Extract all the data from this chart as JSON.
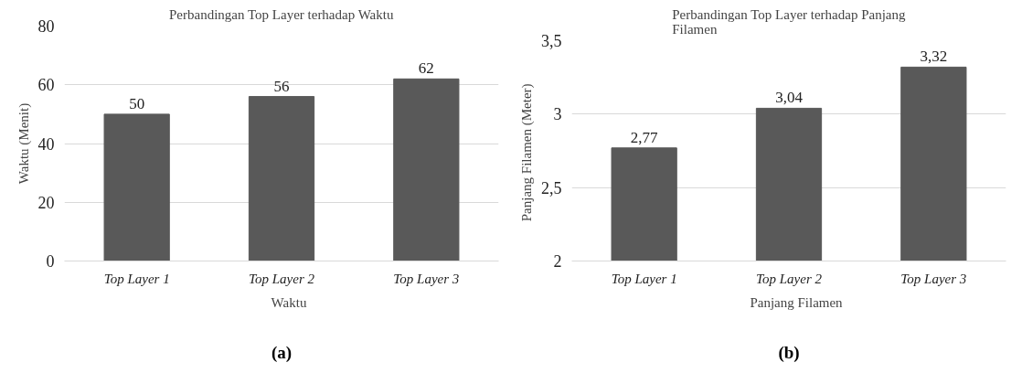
{
  "chart_data": [
    {
      "type": "bar",
      "title": "Perbandingan Top Layer terhadap Waktu",
      "ylabel": "Waktu (Menit)",
      "categories": [
        "Top Layer 1",
        "Top Layer 2",
        "Top Layer 3"
      ],
      "series": [
        {
          "name": "Waktu",
          "color": "#595959",
          "values": [
            50,
            56,
            62
          ]
        }
      ],
      "ylim": [
        0,
        80
      ],
      "yticks": [
        0,
        20,
        40,
        60,
        80
      ],
      "grid": "y",
      "legend": "bottom",
      "data_labels": true,
      "annotations": [
        "(a)"
      ]
    },
    {
      "type": "bar",
      "title": "Perbandingan Top Layer terhadap Panjang\nFilamen",
      "ylabel": "Panjang Filamen  (Meter)",
      "categories": [
        "Top Layer 1",
        "Top Layer 2",
        "Top Layer 3"
      ],
      "series": [
        {
          "name": "Panjang Filamen",
          "color": "#595959",
          "values": [
            2.77,
            3.04,
            3.32
          ],
          "value_labels": [
            "2,77",
            "3,04",
            "3,32"
          ]
        }
      ],
      "ylim": [
        2,
        3.5
      ],
      "yticks": [
        2,
        {
          "value": 2.5,
          "label": "2,5"
        },
        3,
        {
          "value": 3.5,
          "label": "3,5"
        }
      ],
      "grid": "y",
      "legend": "bottom",
      "annotations": [
        "(b)"
      ]
    }
  ]
}
